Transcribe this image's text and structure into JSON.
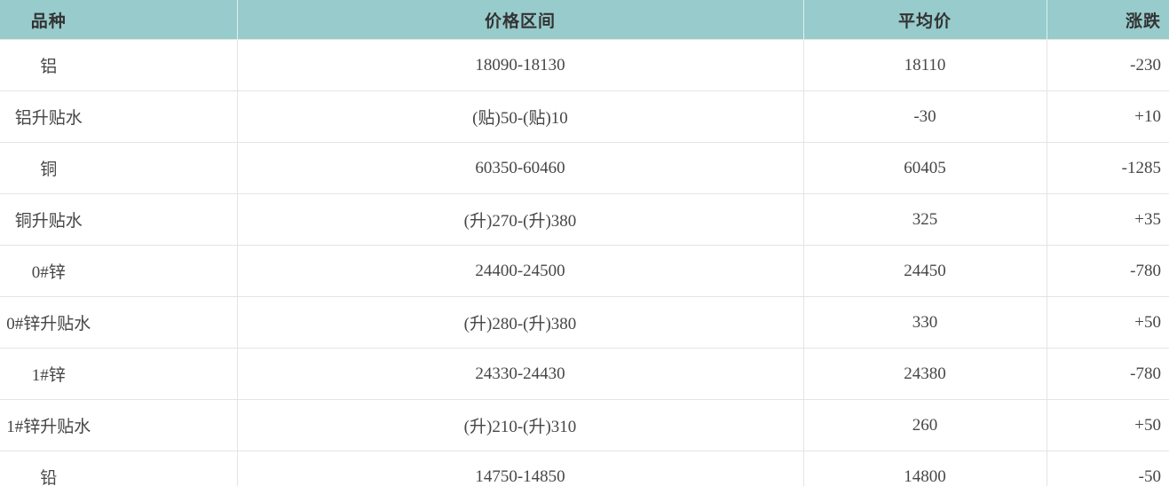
{
  "table": {
    "columns": [
      {
        "key": "variety",
        "label": "品种"
      },
      {
        "key": "range",
        "label": "价格区间"
      },
      {
        "key": "avg",
        "label": "平均价"
      },
      {
        "key": "change",
        "label": "涨跌"
      }
    ],
    "rows": [
      {
        "variety": "铝",
        "range": "18090-18130",
        "avg": "18110",
        "change": "-230"
      },
      {
        "variety": "铝升贴水",
        "range": "(贴)50-(贴)10",
        "avg": "-30",
        "change": "+10"
      },
      {
        "variety": "铜",
        "range": "60350-60460",
        "avg": "60405",
        "change": "-1285"
      },
      {
        "variety": "铜升贴水",
        "range": "(升)270-(升)380",
        "avg": "325",
        "change": "+35"
      },
      {
        "variety": "0#锌",
        "range": "24400-24500",
        "avg": "24450",
        "change": "-780"
      },
      {
        "variety": "0#锌升贴水",
        "range": "(升)280-(升)380",
        "avg": "330",
        "change": "+50"
      },
      {
        "variety": "1#锌",
        "range": "24330-24430",
        "avg": "24380",
        "change": "-780"
      },
      {
        "variety": "1#锌升贴水",
        "range": "(升)210-(升)310",
        "avg": "260",
        "change": "+50"
      },
      {
        "variety": "铅",
        "range": "14750-14850",
        "avg": "14800",
        "change": "-50"
      }
    ],
    "colors": {
      "header_bg": "#98cbcc",
      "header_text": "#333333",
      "body_text": "#464646",
      "border": "#e4e4e4"
    }
  }
}
